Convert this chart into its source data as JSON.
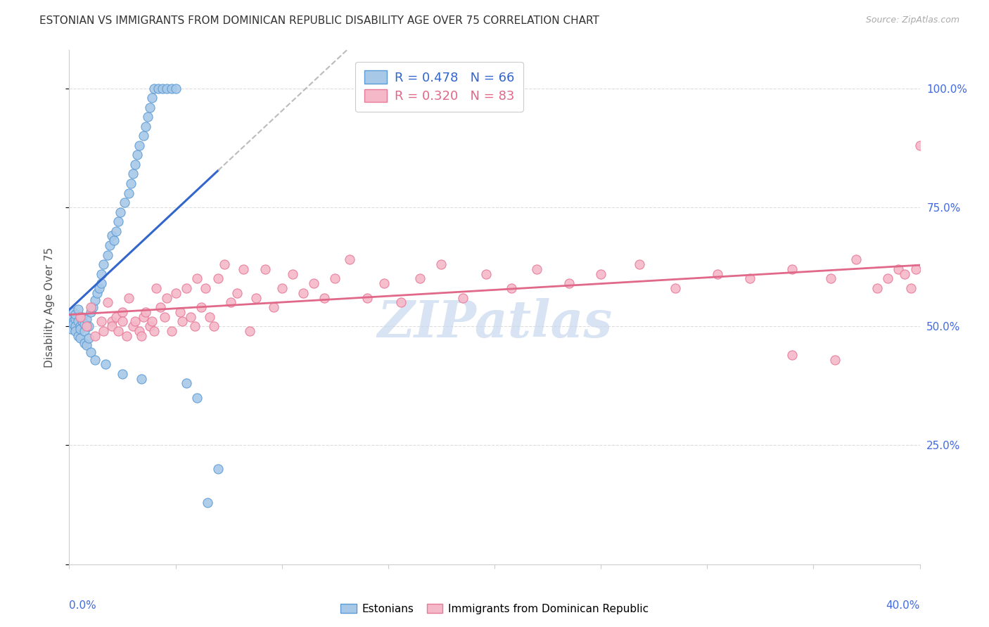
{
  "title": "ESTONIAN VS IMMIGRANTS FROM DOMINICAN REPUBLIC DISABILITY AGE OVER 75 CORRELATION CHART",
  "source": "Source: ZipAtlas.com",
  "ylabel": "Disability Age Over 75",
  "xmin": 0.0,
  "xmax": 0.4,
  "ymin": 0.0,
  "ymax": 1.08,
  "right_yticks": [
    0.25,
    0.5,
    0.75,
    1.0
  ],
  "right_yticklabels": [
    "25.0%",
    "50.0%",
    "75.0%",
    "100.0%"
  ],
  "blue_color": "#a8c8e8",
  "blue_edge_color": "#5b9bd5",
  "blue_line_color": "#3366cc",
  "pink_color": "#f4b8c8",
  "pink_edge_color": "#e87898",
  "pink_line_color": "#e06888",
  "dash_color": "#bbbbbb",
  "blue_R": 0.478,
  "blue_N": 66,
  "pink_R": 0.32,
  "pink_N": 83,
  "watermark_text": "ZIPatlas",
  "watermark_color": "#c8d8ee",
  "bg_color": "#ffffff",
  "grid_color": "#dddddd",
  "blue_scatter_x": [
    0.001,
    0.001,
    0.002,
    0.002,
    0.002,
    0.003,
    0.003,
    0.003,
    0.003,
    0.004,
    0.004,
    0.004,
    0.005,
    0.005,
    0.005,
    0.006,
    0.006,
    0.007,
    0.007,
    0.007,
    0.008,
    0.008,
    0.009,
    0.009,
    0.01,
    0.01,
    0.011,
    0.012,
    0.012,
    0.013,
    0.014,
    0.015,
    0.015,
    0.016,
    0.017,
    0.018,
    0.019,
    0.02,
    0.021,
    0.022,
    0.023,
    0.024,
    0.025,
    0.026,
    0.028,
    0.029,
    0.03,
    0.031,
    0.032,
    0.033,
    0.034,
    0.035,
    0.036,
    0.037,
    0.038,
    0.039,
    0.04,
    0.042,
    0.044,
    0.046,
    0.048,
    0.05,
    0.055,
    0.06,
    0.065,
    0.07
  ],
  "blue_scatter_y": [
    0.52,
    0.495,
    0.51,
    0.53,
    0.505,
    0.515,
    0.5,
    0.49,
    0.525,
    0.48,
    0.51,
    0.535,
    0.5,
    0.475,
    0.495,
    0.51,
    0.52,
    0.49,
    0.505,
    0.465,
    0.515,
    0.46,
    0.5,
    0.475,
    0.53,
    0.445,
    0.54,
    0.555,
    0.43,
    0.57,
    0.58,
    0.59,
    0.61,
    0.63,
    0.42,
    0.65,
    0.67,
    0.69,
    0.68,
    0.7,
    0.72,
    0.74,
    0.4,
    0.76,
    0.78,
    0.8,
    0.82,
    0.84,
    0.86,
    0.88,
    0.39,
    0.9,
    0.92,
    0.94,
    0.96,
    0.98,
    1.0,
    1.0,
    1.0,
    1.0,
    1.0,
    1.0,
    0.38,
    0.35,
    0.13,
    0.2
  ],
  "pink_scatter_x": [
    0.005,
    0.008,
    0.01,
    0.012,
    0.015,
    0.016,
    0.018,
    0.02,
    0.02,
    0.022,
    0.023,
    0.025,
    0.025,
    0.027,
    0.028,
    0.03,
    0.031,
    0.033,
    0.034,
    0.035,
    0.036,
    0.038,
    0.039,
    0.04,
    0.041,
    0.043,
    0.045,
    0.046,
    0.048,
    0.05,
    0.052,
    0.053,
    0.055,
    0.057,
    0.059,
    0.06,
    0.062,
    0.064,
    0.066,
    0.068,
    0.07,
    0.073,
    0.076,
    0.079,
    0.082,
    0.085,
    0.088,
    0.092,
    0.096,
    0.1,
    0.105,
    0.11,
    0.115,
    0.12,
    0.125,
    0.132,
    0.14,
    0.148,
    0.156,
    0.165,
    0.175,
    0.185,
    0.196,
    0.208,
    0.22,
    0.235,
    0.25,
    0.268,
    0.285,
    0.305,
    0.32,
    0.34,
    0.358,
    0.37,
    0.38,
    0.385,
    0.39,
    0.393,
    0.396,
    0.398,
    0.34,
    0.36,
    0.4
  ],
  "pink_scatter_y": [
    0.52,
    0.5,
    0.54,
    0.48,
    0.51,
    0.49,
    0.55,
    0.51,
    0.5,
    0.52,
    0.49,
    0.53,
    0.51,
    0.48,
    0.56,
    0.5,
    0.51,
    0.49,
    0.48,
    0.52,
    0.53,
    0.5,
    0.51,
    0.49,
    0.58,
    0.54,
    0.52,
    0.56,
    0.49,
    0.57,
    0.53,
    0.51,
    0.58,
    0.52,
    0.5,
    0.6,
    0.54,
    0.58,
    0.52,
    0.5,
    0.6,
    0.63,
    0.55,
    0.57,
    0.62,
    0.49,
    0.56,
    0.62,
    0.54,
    0.58,
    0.61,
    0.57,
    0.59,
    0.56,
    0.6,
    0.64,
    0.56,
    0.59,
    0.55,
    0.6,
    0.63,
    0.56,
    0.61,
    0.58,
    0.62,
    0.59,
    0.61,
    0.63,
    0.58,
    0.61,
    0.6,
    0.62,
    0.6,
    0.64,
    0.58,
    0.6,
    0.62,
    0.61,
    0.58,
    0.62,
    0.44,
    0.43,
    0.88
  ]
}
